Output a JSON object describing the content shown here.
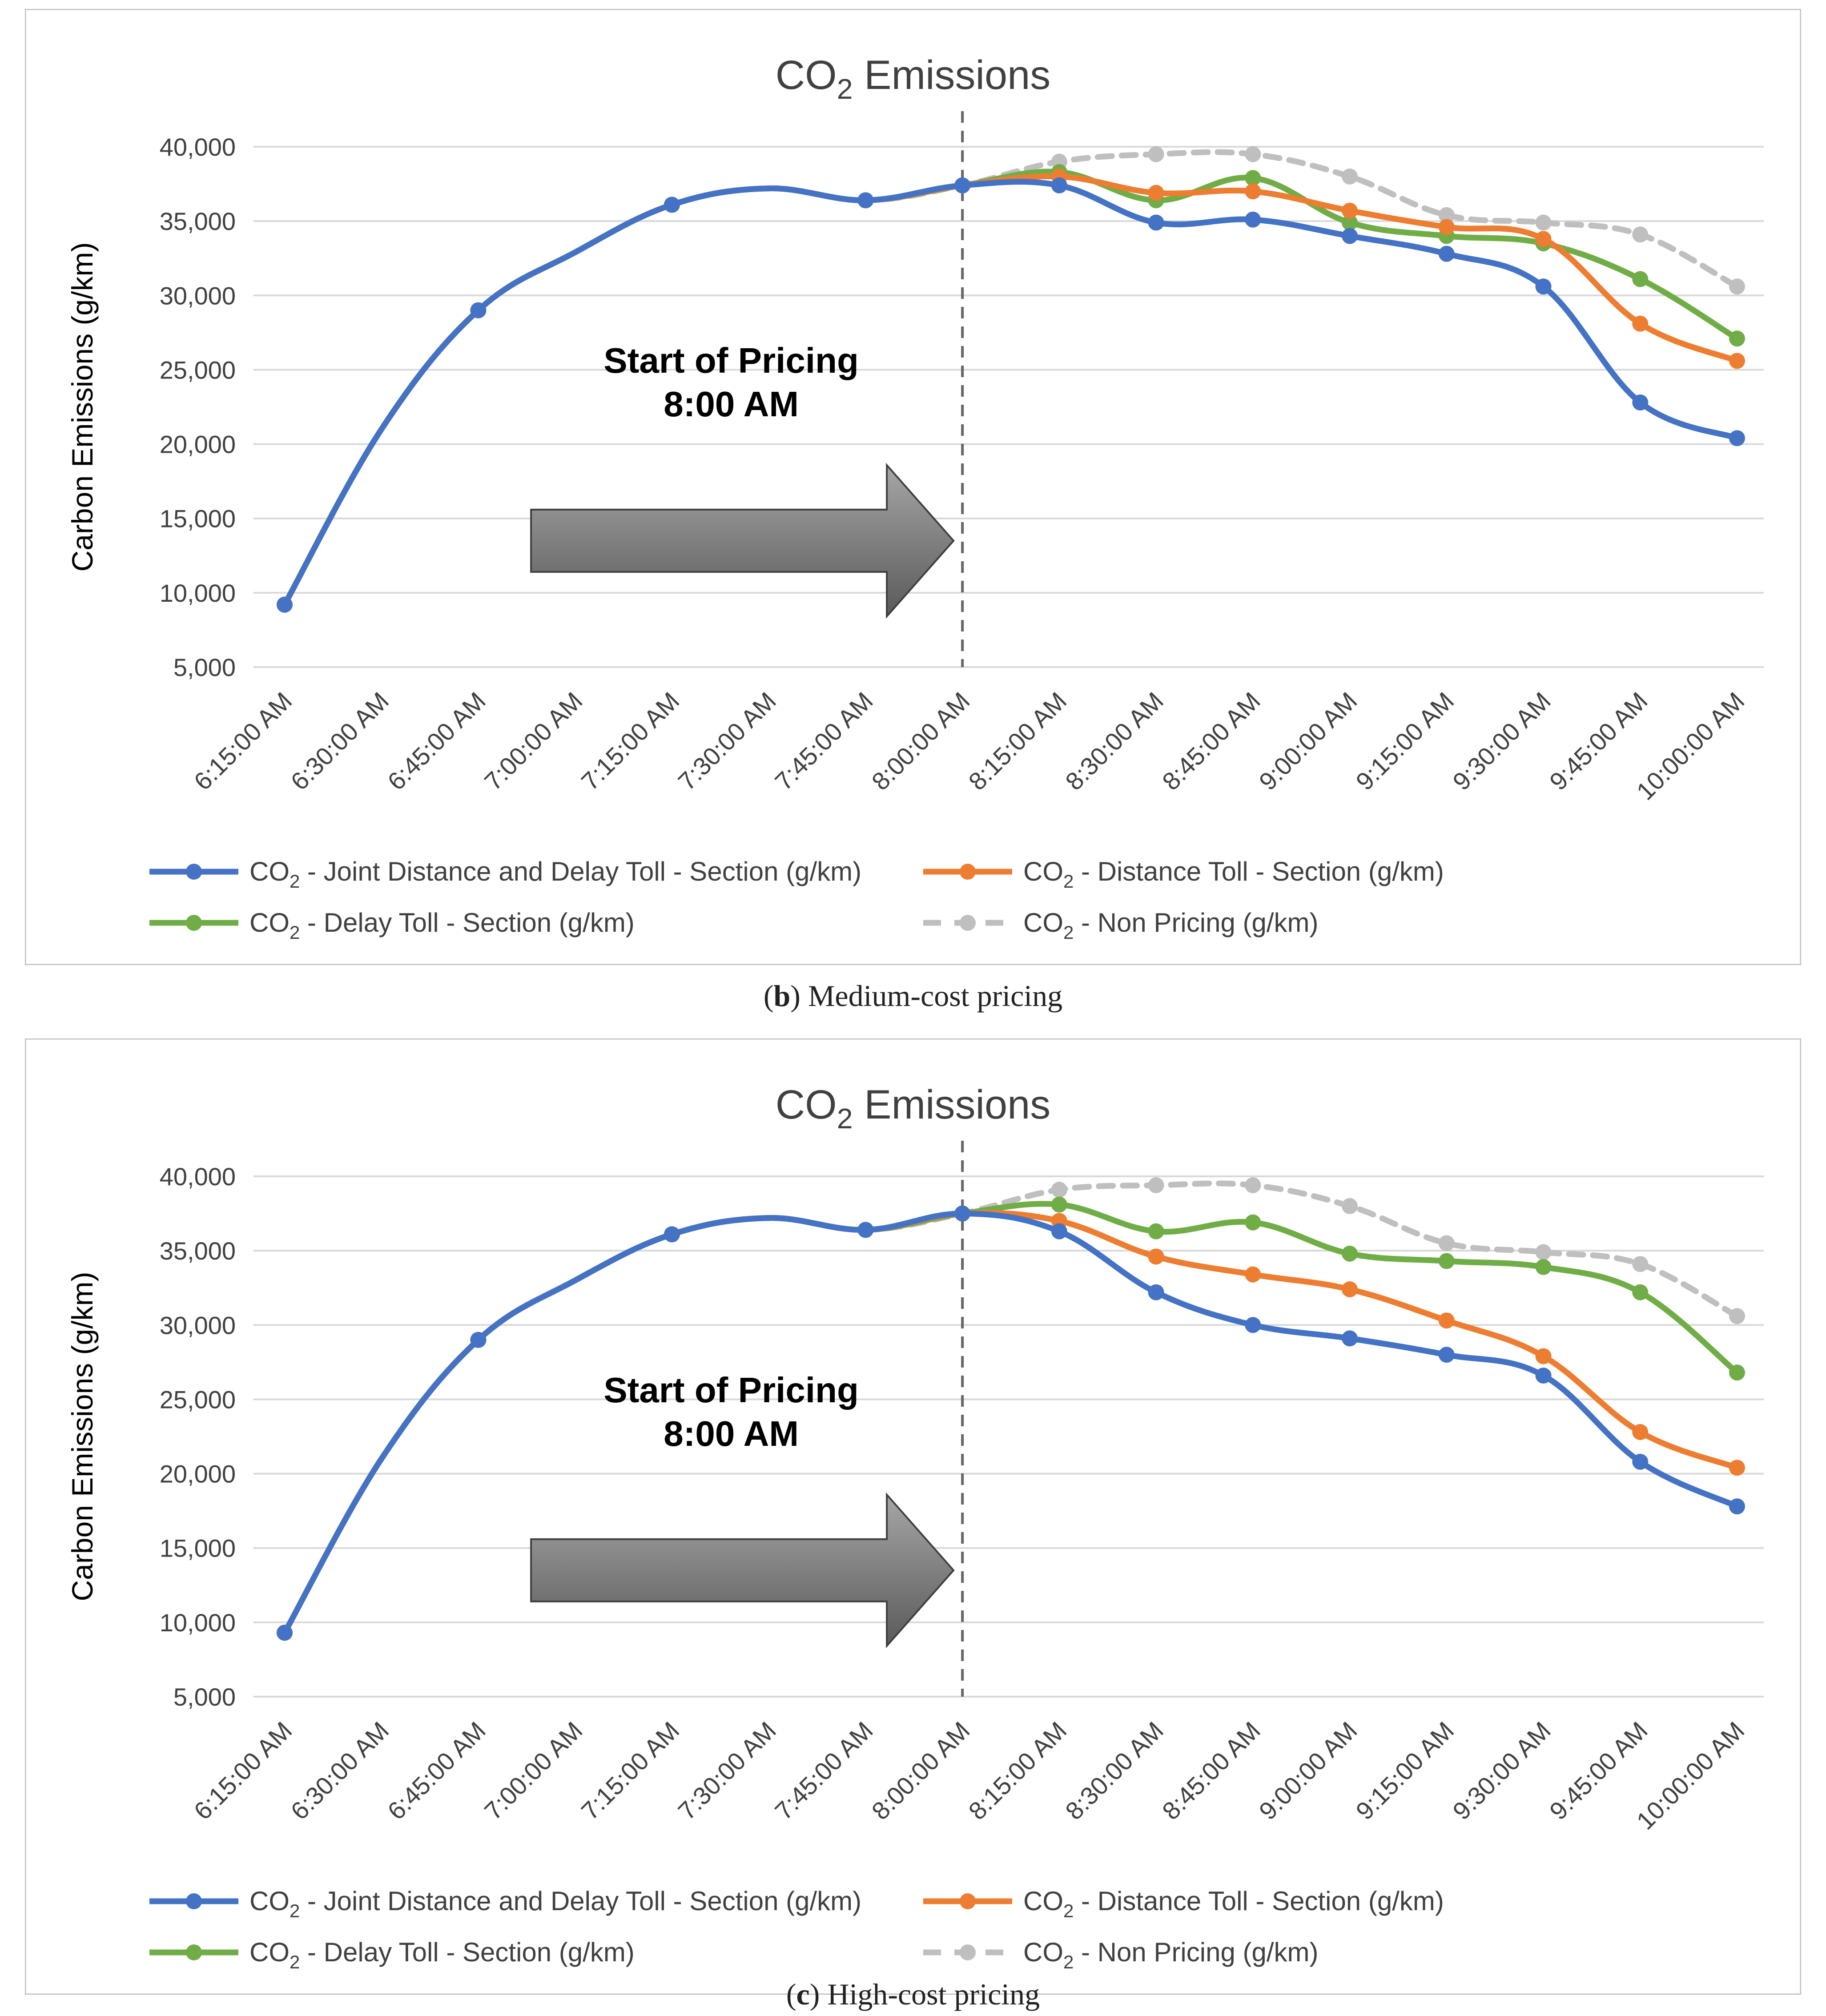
{
  "chart_data": [
    {
      "type": "line",
      "title_main": "CO",
      "title_sub": "2",
      "title_rest": " Emissions",
      "ylabel": "Carbon Emissions (g/km)",
      "ylim": [
        5000,
        40000
      ],
      "yticks": [
        5000,
        10000,
        15000,
        20000,
        25000,
        30000,
        35000,
        40000
      ],
      "ytick_labels": [
        "5,000",
        "10,000",
        "15,000",
        "20,000",
        "25,000",
        "30,000",
        "35,000",
        "40,000"
      ],
      "categories": [
        "6:15:00 AM",
        "6:30:00 AM",
        "6:45:00 AM",
        "7:00:00 AM",
        "7:15:00 AM",
        "7:30:00 AM",
        "7:45:00 AM",
        "8:00:00 AM",
        "8:15:00 AM",
        "8:30:00 AM",
        "8:45:00 AM",
        "9:00:00 AM",
        "9:15:00 AM",
        "9:30:00 AM",
        "9:45:00 AM",
        "10:00:00 AM"
      ],
      "annotation": {
        "line1": "Start of Pricing",
        "line2": "8:00 AM",
        "at_category": "8:00:00 AM"
      },
      "series": [
        {
          "name": "CO₂ - Non Pricing (g/km)",
          "legend_prefix": "CO",
          "legend_sub": "2",
          "legend_rest": " - Non Pricing (g/km)",
          "color": "#BFBFBF",
          "dashed": true,
          "values": [
            9200,
            21000,
            29000,
            32900,
            36100,
            37200,
            36400,
            37400,
            39000,
            39500,
            39500,
            38000,
            35400,
            34900,
            34100,
            30600
          ]
        },
        {
          "name": "CO₂ - Delay Toll - Section (g/km)",
          "legend_prefix": "CO",
          "legend_sub": "2",
          "legend_rest": " - Delay Toll - Section (g/km)",
          "color": "#70AD47",
          "dashed": false,
          "values": [
            9200,
            21000,
            29000,
            32900,
            36100,
            37200,
            36400,
            37400,
            38300,
            36400,
            37900,
            34900,
            34000,
            33500,
            31100,
            27100
          ]
        },
        {
          "name": "CO₂ - Distance Toll - Section (g/km)",
          "legend_prefix": "CO",
          "legend_sub": "2",
          "legend_rest": " - Distance Toll - Section (g/km)",
          "color": "#ED7D31",
          "dashed": false,
          "values": [
            9200,
            21000,
            29000,
            32900,
            36100,
            37200,
            36400,
            37400,
            38000,
            36900,
            37000,
            35700,
            34600,
            33800,
            28100,
            25600
          ]
        },
        {
          "name": "CO₂ - Joint Distance and Delay Toll - Section (g/km)",
          "legend_prefix": "CO",
          "legend_sub": "2",
          "legend_rest": " - Joint Distance and Delay Toll - Section (g/km)",
          "color": "#4472C4",
          "dashed": false,
          "values": [
            9200,
            21000,
            29000,
            32900,
            36100,
            37200,
            36400,
            37400,
            37400,
            34900,
            35100,
            34000,
            32800,
            30600,
            22800,
            20400
          ]
        }
      ],
      "caption_letter": "b",
      "caption_text": " Medium-cost pricing"
    },
    {
      "type": "line",
      "title_main": "CO",
      "title_sub": "2",
      "title_rest": " Emissions",
      "ylabel": "Carbon Emissions (g/km)",
      "ylim": [
        5000,
        40000
      ],
      "yticks": [
        5000,
        10000,
        15000,
        20000,
        25000,
        30000,
        35000,
        40000
      ],
      "ytick_labels": [
        "5,000",
        "10,000",
        "15,000",
        "20,000",
        "25,000",
        "30,000",
        "35,000",
        "40,000"
      ],
      "categories": [
        "6:15:00 AM",
        "6:30:00 AM",
        "6:45:00 AM",
        "7:00:00 AM",
        "7:15:00 AM",
        "7:30:00 AM",
        "7:45:00 AM",
        "8:00:00 AM",
        "8:15:00 AM",
        "8:30:00 AM",
        "8:45:00 AM",
        "9:00:00 AM",
        "9:15:00 AM",
        "9:30:00 AM",
        "9:45:00 AM",
        "10:00:00 AM"
      ],
      "annotation": {
        "line1": "Start of Pricing",
        "line2": "8:00 AM",
        "at_category": "8:00:00 AM"
      },
      "series": [
        {
          "name": "CO₂ - Non Pricing (g/km)",
          "legend_prefix": "CO",
          "legend_sub": "2",
          "legend_rest": " - Non Pricing (g/km)",
          "color": "#BFBFBF",
          "dashed": true,
          "values": [
            9300,
            21000,
            29000,
            33000,
            36100,
            37200,
            36400,
            37500,
            39100,
            39400,
            39400,
            38000,
            35500,
            34900,
            34100,
            30600
          ]
        },
        {
          "name": "CO₂ - Delay Toll - Section (g/km)",
          "legend_prefix": "CO",
          "legend_sub": "2",
          "legend_rest": " - Delay Toll - Section (g/km)",
          "color": "#70AD47",
          "dashed": false,
          "values": [
            9300,
            21000,
            29000,
            33000,
            36100,
            37200,
            36400,
            37500,
            38100,
            36300,
            36900,
            34800,
            34300,
            33900,
            32200,
            26800
          ]
        },
        {
          "name": "CO₂ - Distance Toll - Section (g/km)",
          "legend_prefix": "CO",
          "legend_sub": "2",
          "legend_rest": " - Distance Toll - Section (g/km)",
          "color": "#ED7D31",
          "dashed": false,
          "values": [
            9300,
            21000,
            29000,
            33000,
            36100,
            37200,
            36400,
            37500,
            37000,
            34600,
            33400,
            32400,
            30300,
            27900,
            22800,
            20400
          ]
        },
        {
          "name": "CO₂ - Joint Distance and Delay Toll - Section (g/km)",
          "legend_prefix": "CO",
          "legend_sub": "2",
          "legend_rest": " - Joint Distance and Delay Toll - Section (g/km)",
          "color": "#4472C4",
          "dashed": false,
          "values": [
            9300,
            21000,
            29000,
            33000,
            36100,
            37200,
            36400,
            37500,
            36300,
            32200,
            30000,
            29100,
            28000,
            26600,
            20800,
            17800
          ]
        }
      ],
      "caption_letter": "c",
      "caption_text": " High-cost pricing"
    }
  ]
}
